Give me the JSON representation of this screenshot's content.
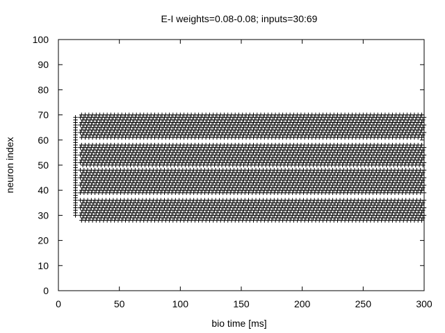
{
  "chart_data": {
    "type": "scatter",
    "title": "E-I weights=0.08-0.08; inputs=30:69",
    "xlabel": "bio time [ms]",
    "ylabel": "neuron index",
    "xlim": [
      0,
      300
    ],
    "ylim": [
      0,
      100
    ],
    "xticks": [
      0,
      50,
      100,
      150,
      200,
      250,
      300
    ],
    "yticks": [
      0,
      10,
      20,
      30,
      40,
      50,
      60,
      70,
      80,
      90,
      100
    ],
    "grid": false,
    "marker": "+",
    "marker_color": "#000000",
    "onset_spikes": {
      "time_ms": 14,
      "neuron_range": [
        30,
        69
      ]
    },
    "spike_bands": [
      {
        "neuron_range": [
          28,
          36
        ],
        "time_range_ms": [
          18,
          300
        ],
        "interval_ms": 3
      },
      {
        "neuron_range": [
          39,
          48
        ],
        "time_range_ms": [
          18,
          300
        ],
        "interval_ms": 3
      },
      {
        "neuron_range": [
          50,
          58
        ],
        "time_range_ms": [
          18,
          300
        ],
        "interval_ms": 3
      },
      {
        "neuron_range": [
          61,
          70
        ],
        "time_range_ms": [
          18,
          300
        ],
        "interval_ms": 3
      }
    ]
  }
}
